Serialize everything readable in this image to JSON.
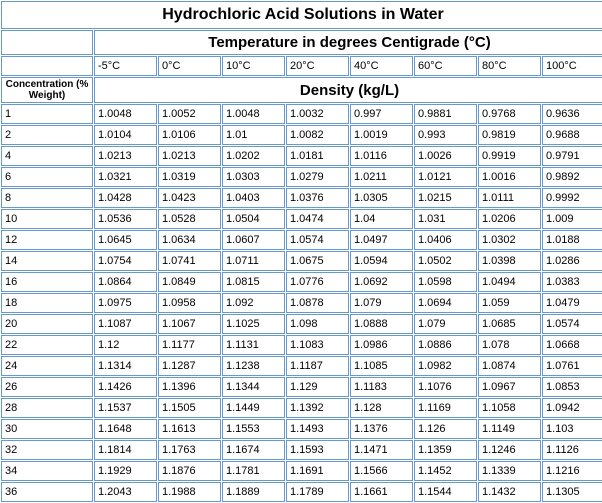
{
  "title": "Hydrochloric Acid Solutions in Water",
  "temp_header": "Temperature in degrees Centigrade (°C)",
  "conc_header": "Concentration (% Weight)",
  "density_header": "Density (kg/L)",
  "temperatures": [
    "-5°C",
    "0°C",
    "10°C",
    "20°C",
    "40°C",
    "60°C",
    "80°C",
    "100°C"
  ],
  "rows": [
    {
      "c": "1",
      "d": [
        "1.0048",
        "1.0052",
        "1.0048",
        "1.0032",
        "0.997",
        "0.9881",
        "0.9768",
        "0.9636"
      ]
    },
    {
      "c": "2",
      "d": [
        "1.0104",
        "1.0106",
        "1.01",
        "1.0082",
        "1.0019",
        "0.993",
        "0.9819",
        "0.9688"
      ]
    },
    {
      "c": "4",
      "d": [
        "1.0213",
        "1.0213",
        "1.0202",
        "1.0181",
        "1.0116",
        "1.0026",
        "0.9919",
        "0.9791"
      ]
    },
    {
      "c": "6",
      "d": [
        "1.0321",
        "1.0319",
        "1.0303",
        "1.0279",
        "1.0211",
        "1.0121",
        "1.0016",
        "0.9892"
      ]
    },
    {
      "c": "8",
      "d": [
        "1.0428",
        "1.0423",
        "1.0403",
        "1.0376",
        "1.0305",
        "1.0215",
        "1.0111",
        "0.9992"
      ]
    },
    {
      "c": "10",
      "d": [
        "1.0536",
        "1.0528",
        "1.0504",
        "1.0474",
        "1.04",
        "1.031",
        "1.0206",
        "1.009"
      ]
    },
    {
      "c": "12",
      "d": [
        "1.0645",
        "1.0634",
        "1.0607",
        "1.0574",
        "1.0497",
        "1.0406",
        "1.0302",
        "1.0188"
      ]
    },
    {
      "c": "14",
      "d": [
        "1.0754",
        "1.0741",
        "1.0711",
        "1.0675",
        "1.0594",
        "1.0502",
        "1.0398",
        "1.0286"
      ]
    },
    {
      "c": "16",
      "d": [
        "1.0864",
        "1.0849",
        "1.0815",
        "1.0776",
        "1.0692",
        "1.0598",
        "1.0494",
        "1.0383"
      ]
    },
    {
      "c": "18",
      "d": [
        "1.0975",
        "1.0958",
        "1.092",
        "1.0878",
        "1.079",
        "1.0694",
        "1.059",
        "1.0479"
      ]
    },
    {
      "c": "20",
      "d": [
        "1.1087",
        "1.1067",
        "1.1025",
        "1.098",
        "1.0888",
        "1.079",
        "1.0685",
        "1.0574"
      ]
    },
    {
      "c": "22",
      "d": [
        "1.12",
        "1.1177",
        "1.1131",
        "1.1083",
        "1.0986",
        "1.0886",
        "1.078",
        "1.0668"
      ]
    },
    {
      "c": "24",
      "d": [
        "1.1314",
        "1.1287",
        "1.1238",
        "1.1187",
        "1.1085",
        "1.0982",
        "1.0874",
        "1.0761"
      ]
    },
    {
      "c": "26",
      "d": [
        "1.1426",
        "1.1396",
        "1.1344",
        "1.129",
        "1.1183",
        "1.1076",
        "1.0967",
        "1.0853"
      ]
    },
    {
      "c": "28",
      "d": [
        "1.1537",
        "1.1505",
        "1.1449",
        "1.1392",
        "1.128",
        "1.1169",
        "1.1058",
        "1.0942"
      ]
    },
    {
      "c": "30",
      "d": [
        "1.1648",
        "1.1613",
        "1.1553",
        "1.1493",
        "1.1376",
        "1.126",
        "1.1149",
        "1.103"
      ]
    },
    {
      "c": "32",
      "d": [
        "1.1814",
        "1.1763",
        "1.1674",
        "1.1593",
        "1.1471",
        "1.1359",
        "1.1246",
        "1.1126"
      ]
    },
    {
      "c": "34",
      "d": [
        "1.1929",
        "1.1876",
        "1.1781",
        "1.1691",
        "1.1566",
        "1.1452",
        "1.1339",
        "1.1216"
      ]
    },
    {
      "c": "36",
      "d": [
        "1.2043",
        "1.1988",
        "1.1889",
        "1.1789",
        "1.1661",
        "1.1544",
        "1.1432",
        "1.1305"
      ]
    }
  ],
  "colors": {
    "border": "#6699cc",
    "bg": "#ffffff",
    "text": "#000000"
  }
}
